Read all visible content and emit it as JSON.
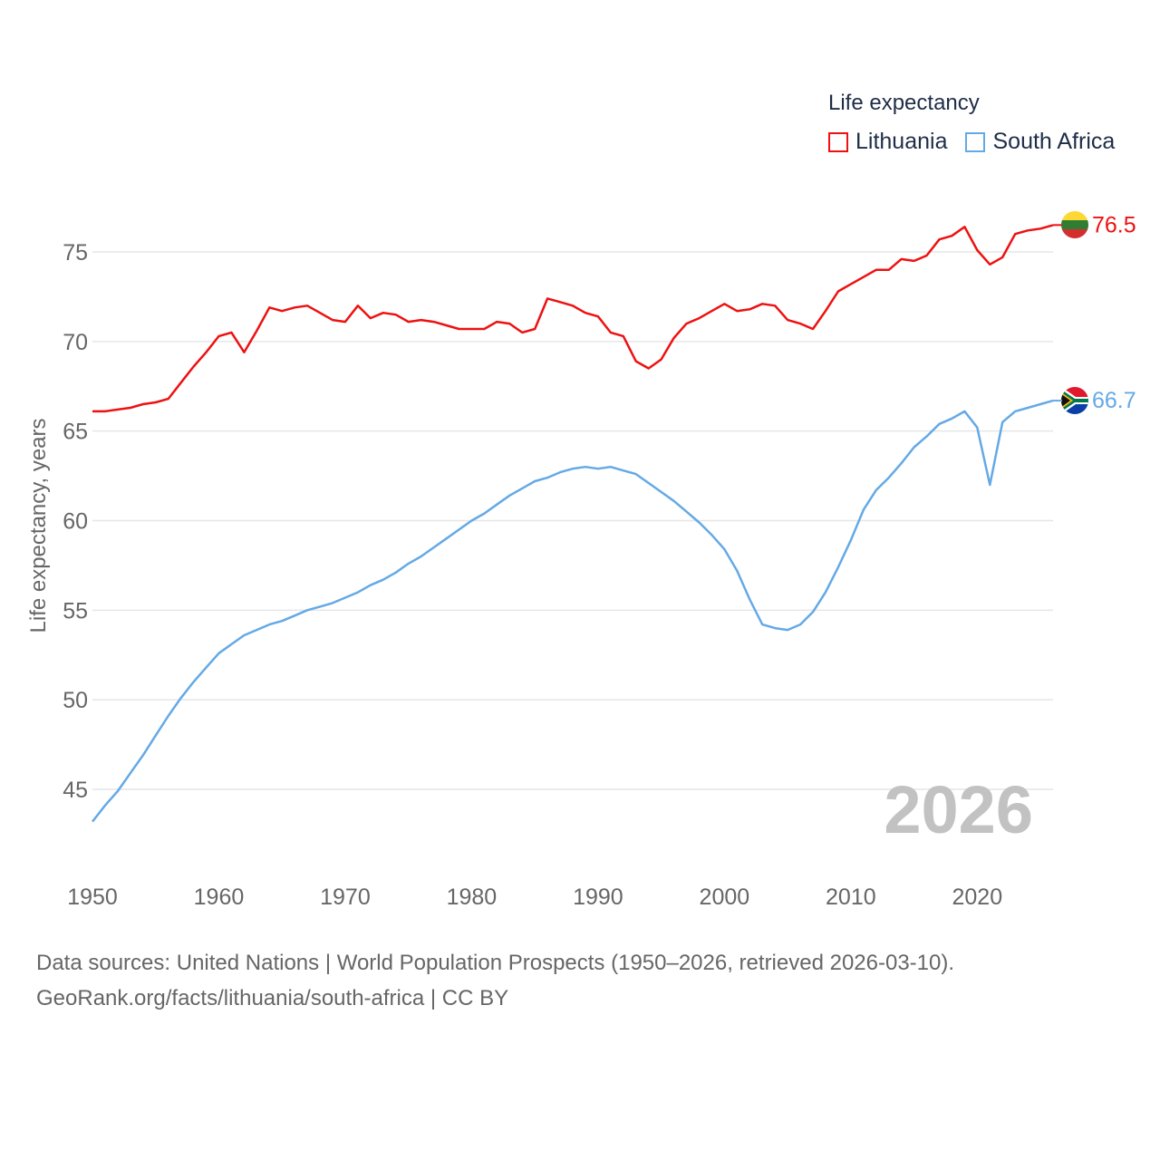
{
  "legend": {
    "title": "Life expectancy",
    "items": [
      {
        "name": "Lithuania",
        "color": "#ee1111"
      },
      {
        "name": "South Africa",
        "color": "#64a9e6"
      }
    ]
  },
  "footer": {
    "line1": "Data sources: United Nations | World Population Prospects (1950–2026, retrieved 2026-03-10).",
    "line2": "GeoRank.org/facts/lithuania/south-africa | CC BY"
  },
  "chart_data": {
    "type": "line",
    "title": "Life expectancy",
    "xlabel": "",
    "ylabel": "Life expectancy, years",
    "xlim": [
      1950,
      2026
    ],
    "ylim": [
      42,
      78
    ],
    "x_ticks": [
      1950,
      1960,
      1970,
      1980,
      1990,
      2000,
      2010,
      2020
    ],
    "y_ticks": [
      45,
      50,
      55,
      60,
      65,
      70,
      75
    ],
    "grid": true,
    "year_watermark": "2026",
    "series": [
      {
        "name": "Lithuania",
        "color": "#ee1111",
        "end_label": "76.5",
        "icon": "lithuania-flag-icon",
        "x": [
          1950,
          1951,
          1952,
          1953,
          1954,
          1955,
          1956,
          1957,
          1958,
          1959,
          1960,
          1961,
          1962,
          1963,
          1964,
          1965,
          1966,
          1967,
          1968,
          1969,
          1970,
          1971,
          1972,
          1973,
          1974,
          1975,
          1976,
          1977,
          1978,
          1979,
          1980,
          1981,
          1982,
          1983,
          1984,
          1985,
          1986,
          1987,
          1988,
          1989,
          1990,
          1991,
          1992,
          1993,
          1994,
          1995,
          1996,
          1997,
          1998,
          1999,
          2000,
          2001,
          2002,
          2003,
          2004,
          2005,
          2006,
          2007,
          2008,
          2009,
          2010,
          2011,
          2012,
          2013,
          2014,
          2015,
          2016,
          2017,
          2018,
          2019,
          2020,
          2021,
          2022,
          2023,
          2024,
          2025,
          2026
        ],
        "values": [
          66.1,
          66.1,
          66.2,
          66.3,
          66.5,
          66.6,
          66.8,
          67.7,
          68.6,
          69.4,
          70.3,
          70.5,
          69.4,
          70.6,
          71.9,
          71.7,
          71.9,
          72.0,
          71.6,
          71.2,
          71.1,
          72.0,
          71.3,
          71.6,
          71.5,
          71.1,
          71.2,
          71.1,
          70.9,
          70.7,
          70.7,
          70.7,
          71.1,
          71.0,
          70.5,
          70.7,
          72.4,
          72.2,
          72.0,
          71.6,
          71.4,
          70.5,
          70.3,
          68.9,
          68.5,
          69.0,
          70.2,
          71.0,
          71.3,
          71.7,
          72.1,
          71.7,
          71.8,
          72.1,
          72.0,
          71.2,
          71.0,
          70.7,
          71.7,
          72.8,
          73.2,
          73.6,
          74.0,
          74.0,
          74.6,
          74.5,
          74.8,
          75.7,
          75.9,
          76.4,
          75.1,
          74.3,
          74.7,
          76.0,
          76.2,
          76.3,
          76.5
        ]
      },
      {
        "name": "South Africa",
        "color": "#64a9e6",
        "end_label": "66.7",
        "icon": "south-africa-flag-icon",
        "x": [
          1950,
          1951,
          1952,
          1953,
          1954,
          1955,
          1956,
          1957,
          1958,
          1959,
          1960,
          1961,
          1962,
          1963,
          1964,
          1965,
          1966,
          1967,
          1968,
          1969,
          1970,
          1971,
          1972,
          1973,
          1974,
          1975,
          1976,
          1977,
          1978,
          1979,
          1980,
          1981,
          1982,
          1983,
          1984,
          1985,
          1986,
          1987,
          1988,
          1989,
          1990,
          1991,
          1992,
          1993,
          1994,
          1995,
          1996,
          1997,
          1998,
          1999,
          2000,
          2001,
          2002,
          2003,
          2004,
          2005,
          2006,
          2007,
          2008,
          2009,
          2010,
          2011,
          2012,
          2013,
          2014,
          2015,
          2016,
          2017,
          2018,
          2019,
          2020,
          2021,
          2022,
          2023,
          2024,
          2025,
          2026
        ],
        "values": [
          43.2,
          44.1,
          44.9,
          45.9,
          46.9,
          48.0,
          49.1,
          50.1,
          51.0,
          51.8,
          52.6,
          53.1,
          53.6,
          53.9,
          54.2,
          54.4,
          54.7,
          55.0,
          55.2,
          55.4,
          55.7,
          56.0,
          56.4,
          56.7,
          57.1,
          57.6,
          58.0,
          58.5,
          59.0,
          59.5,
          60.0,
          60.4,
          60.9,
          61.4,
          61.8,
          62.2,
          62.4,
          62.7,
          62.9,
          63.0,
          62.9,
          63.0,
          62.8,
          62.6,
          62.1,
          61.6,
          61.1,
          60.5,
          59.9,
          59.2,
          58.4,
          57.2,
          55.6,
          54.2,
          54.0,
          53.9,
          54.2,
          54.9,
          56.0,
          57.4,
          58.9,
          60.6,
          61.7,
          62.4,
          63.2,
          64.1,
          64.7,
          65.4,
          65.7,
          66.1,
          65.2,
          62.0,
          65.5,
          66.1,
          66.3,
          66.5,
          66.7
        ]
      }
    ]
  }
}
